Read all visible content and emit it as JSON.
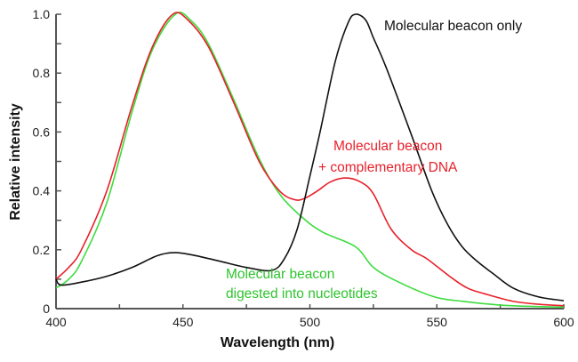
{
  "chart_data": {
    "type": "line",
    "title": "",
    "xlabel": "Wavelength (nm)",
    "ylabel": "Relative intensity",
    "xlim": [
      400,
      600
    ],
    "ylim": [
      0,
      1.0
    ],
    "xticks": [
      "400",
      "450",
      "500",
      "550",
      "600"
    ],
    "yticks": [
      "0",
      "0.2",
      "0.4",
      "0.6",
      "0.8",
      "1.0"
    ],
    "grid": false,
    "series": [
      {
        "name": "Molecular beacon only",
        "color": "#111111",
        "x": [
          400,
          402,
          410,
          420,
          430,
          440,
          447,
          455,
          465,
          475,
          485,
          490,
          495,
          500,
          504,
          510,
          515,
          518,
          522,
          525,
          530,
          540,
          548,
          554,
          560,
          566,
          572,
          580,
          590,
          600
        ],
        "y": [
          0.1,
          0.08,
          0.09,
          0.11,
          0.14,
          0.18,
          0.19,
          0.18,
          0.16,
          0.14,
          0.13,
          0.17,
          0.27,
          0.45,
          0.6,
          0.84,
          0.97,
          1.0,
          0.98,
          0.92,
          0.82,
          0.59,
          0.4,
          0.29,
          0.21,
          0.16,
          0.12,
          0.07,
          0.04,
          0.027
        ]
      },
      {
        "name": "Molecular beacon + complementary DNA",
        "color": "#e8202a",
        "x": [
          400,
          405,
          410,
          420,
          430,
          438,
          446,
          452,
          460,
          470,
          480,
          488,
          494,
          498,
          503,
          508,
          514,
          520,
          525,
          532,
          540,
          546,
          555,
          562,
          569,
          580,
          590,
          600
        ],
        "y": [
          0.1,
          0.14,
          0.2,
          0.4,
          0.69,
          0.89,
          1.0,
          0.98,
          0.89,
          0.7,
          0.5,
          0.4,
          0.37,
          0.375,
          0.4,
          0.43,
          0.444,
          0.43,
          0.39,
          0.27,
          0.2,
          0.17,
          0.11,
          0.07,
          0.05,
          0.025,
          0.015,
          0.01
        ]
      },
      {
        "name": "Molecular beacon digested into nucleotides",
        "color": "#3ddc3d",
        "x": [
          400,
          405,
          410,
          420,
          430,
          438,
          447,
          453,
          460,
          470,
          480,
          488,
          497,
          505,
          518,
          525,
          535,
          549,
          560,
          575,
          590,
          600
        ],
        "y": [
          0.07,
          0.1,
          0.16,
          0.36,
          0.67,
          0.88,
          1.0,
          0.98,
          0.9,
          0.71,
          0.51,
          0.39,
          0.31,
          0.26,
          0.21,
          0.14,
          0.09,
          0.04,
          0.025,
          0.012,
          0.007,
          0.005
        ]
      }
    ],
    "annotations": [
      {
        "lines": [
          "Molecular beacon only"
        ],
        "color": "#111111"
      },
      {
        "lines": [
          "Molecular beacon",
          "+ complementary DNA"
        ],
        "color": "#e8202a"
      },
      {
        "lines": [
          "Molecular beacon",
          "digested into nucleotides"
        ],
        "color": "#2ec42e"
      }
    ]
  }
}
